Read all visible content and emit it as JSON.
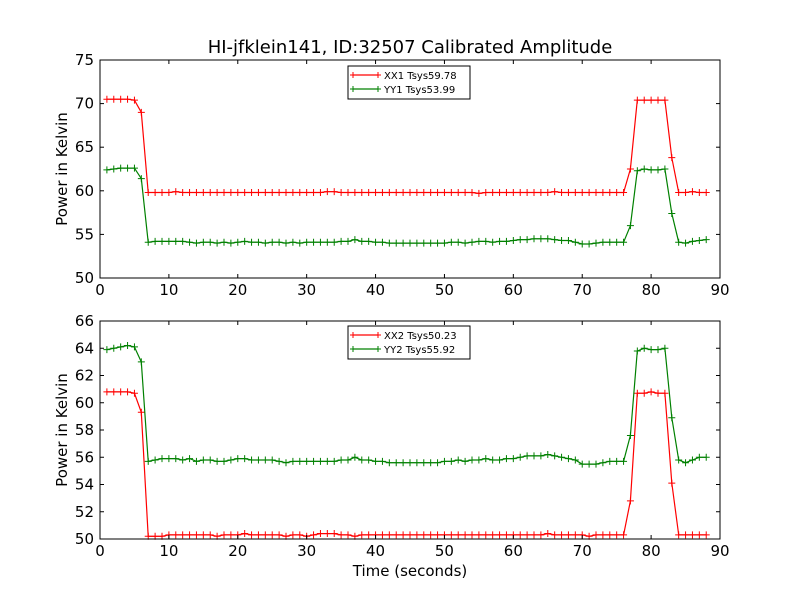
{
  "figure": {
    "title": "HI-jfklein141, ID:32507 Calibrated Amplitude",
    "xlabel": "Time (seconds)"
  },
  "chart_data": [
    {
      "type": "line",
      "title": "HI-jfklein141, ID:32507 Calibrated Amplitude",
      "xlabel": "",
      "ylabel": "Power in Kelvin",
      "xlim": [
        0,
        90
      ],
      "ylim": [
        50,
        75
      ],
      "xticks": [
        0,
        10,
        20,
        30,
        40,
        50,
        60,
        70,
        80,
        90
      ],
      "yticks": [
        50,
        55,
        60,
        65,
        70,
        75
      ],
      "grid": false,
      "legend_position": "top-center",
      "series": [
        {
          "name": "XX1 Tsys59.78",
          "color": "#ff0000",
          "x": [
            1,
            2,
            3,
            4,
            5,
            6,
            7,
            8,
            9,
            10,
            11,
            12,
            13,
            14,
            15,
            16,
            17,
            18,
            19,
            20,
            21,
            22,
            23,
            24,
            25,
            26,
            27,
            28,
            29,
            30,
            31,
            32,
            33,
            34,
            35,
            36,
            37,
            38,
            39,
            40,
            41,
            42,
            43,
            44,
            45,
            46,
            47,
            48,
            49,
            50,
            51,
            52,
            53,
            54,
            55,
            56,
            57,
            58,
            59,
            60,
            61,
            62,
            63,
            64,
            65,
            66,
            67,
            68,
            69,
            70,
            71,
            72,
            73,
            74,
            75,
            76,
            77,
            78,
            79,
            80,
            81,
            82,
            83,
            84,
            85,
            86,
            87,
            88
          ],
          "values": [
            70.5,
            70.5,
            70.5,
            70.5,
            70.4,
            69.0,
            59.8,
            59.8,
            59.8,
            59.8,
            59.9,
            59.8,
            59.8,
            59.8,
            59.8,
            59.8,
            59.8,
            59.8,
            59.8,
            59.8,
            59.8,
            59.8,
            59.8,
            59.8,
            59.8,
            59.8,
            59.8,
            59.8,
            59.8,
            59.8,
            59.8,
            59.8,
            59.9,
            59.9,
            59.8,
            59.8,
            59.8,
            59.8,
            59.8,
            59.8,
            59.8,
            59.8,
            59.8,
            59.8,
            59.8,
            59.8,
            59.8,
            59.8,
            59.8,
            59.8,
            59.8,
            59.8,
            59.8,
            59.8,
            59.7,
            59.8,
            59.8,
            59.8,
            59.8,
            59.8,
            59.8,
            59.8,
            59.8,
            59.8,
            59.8,
            59.9,
            59.8,
            59.8,
            59.8,
            59.8,
            59.8,
            59.8,
            59.8,
            59.8,
            59.8,
            59.8,
            62.5,
            70.4,
            70.4,
            70.4,
            70.4,
            70.4,
            63.8,
            59.8,
            59.8,
            59.9,
            59.8,
            59.8
          ]
        },
        {
          "name": "YY1 Tsys53.99",
          "color": "#008000",
          "x": [
            1,
            2,
            3,
            4,
            5,
            6,
            7,
            8,
            9,
            10,
            11,
            12,
            13,
            14,
            15,
            16,
            17,
            18,
            19,
            20,
            21,
            22,
            23,
            24,
            25,
            26,
            27,
            28,
            29,
            30,
            31,
            32,
            33,
            34,
            35,
            36,
            37,
            38,
            39,
            40,
            41,
            42,
            43,
            44,
            45,
            46,
            47,
            48,
            49,
            50,
            51,
            52,
            53,
            54,
            55,
            56,
            57,
            58,
            59,
            60,
            61,
            62,
            63,
            64,
            65,
            66,
            67,
            68,
            69,
            70,
            71,
            72,
            73,
            74,
            75,
            76,
            77,
            78,
            79,
            80,
            81,
            82,
            83,
            84,
            85,
            86,
            87,
            88
          ],
          "values": [
            62.4,
            62.5,
            62.6,
            62.6,
            62.6,
            61.4,
            54.1,
            54.2,
            54.2,
            54.2,
            54.2,
            54.2,
            54.1,
            54.0,
            54.1,
            54.1,
            54.0,
            54.1,
            54.0,
            54.1,
            54.2,
            54.1,
            54.1,
            54.0,
            54.1,
            54.1,
            54.0,
            54.1,
            54.0,
            54.1,
            54.1,
            54.1,
            54.1,
            54.1,
            54.2,
            54.2,
            54.4,
            54.2,
            54.2,
            54.1,
            54.1,
            54.0,
            54.0,
            54.0,
            54.0,
            54.0,
            54.0,
            54.0,
            54.0,
            54.0,
            54.1,
            54.1,
            54.0,
            54.1,
            54.2,
            54.2,
            54.1,
            54.2,
            54.2,
            54.3,
            54.4,
            54.4,
            54.5,
            54.5,
            54.5,
            54.4,
            54.3,
            54.3,
            54.1,
            53.9,
            53.9,
            54.0,
            54.1,
            54.1,
            54.1,
            54.1,
            56.0,
            62.3,
            62.5,
            62.4,
            62.4,
            62.5,
            57.4,
            54.1,
            54.0,
            54.2,
            54.3,
            54.4
          ]
        }
      ]
    },
    {
      "type": "line",
      "xlabel": "Time (seconds)",
      "ylabel": "Power in Kelvin",
      "xlim": [
        0,
        90
      ],
      "ylim": [
        50,
        66
      ],
      "xticks": [
        0,
        10,
        20,
        30,
        40,
        50,
        60,
        70,
        80,
        90
      ],
      "yticks": [
        50,
        52,
        54,
        56,
        58,
        60,
        62,
        64,
        66
      ],
      "grid": false,
      "legend_position": "top-center",
      "series": [
        {
          "name": "XX2 Tsys50.23",
          "color": "#ff0000",
          "x": [
            1,
            2,
            3,
            4,
            5,
            6,
            7,
            8,
            9,
            10,
            11,
            12,
            13,
            14,
            15,
            16,
            17,
            18,
            19,
            20,
            21,
            22,
            23,
            24,
            25,
            26,
            27,
            28,
            29,
            30,
            31,
            32,
            33,
            34,
            35,
            36,
            37,
            38,
            39,
            40,
            41,
            42,
            43,
            44,
            45,
            46,
            47,
            48,
            49,
            50,
            51,
            52,
            53,
            54,
            55,
            56,
            57,
            58,
            59,
            60,
            61,
            62,
            63,
            64,
            65,
            66,
            67,
            68,
            69,
            70,
            71,
            72,
            73,
            74,
            75,
            76,
            77,
            78,
            79,
            80,
            81,
            82,
            83,
            84,
            85,
            86,
            87,
            88
          ],
          "values": [
            60.8,
            60.8,
            60.8,
            60.8,
            60.7,
            59.3,
            50.2,
            50.2,
            50.2,
            50.3,
            50.3,
            50.3,
            50.3,
            50.3,
            50.3,
            50.3,
            50.2,
            50.3,
            50.3,
            50.3,
            50.4,
            50.3,
            50.3,
            50.3,
            50.3,
            50.3,
            50.2,
            50.3,
            50.3,
            50.2,
            50.3,
            50.4,
            50.4,
            50.4,
            50.3,
            50.3,
            50.2,
            50.3,
            50.3,
            50.3,
            50.3,
            50.3,
            50.3,
            50.3,
            50.3,
            50.3,
            50.3,
            50.3,
            50.3,
            50.3,
            50.3,
            50.3,
            50.3,
            50.3,
            50.3,
            50.3,
            50.3,
            50.3,
            50.3,
            50.3,
            50.3,
            50.3,
            50.3,
            50.3,
            50.4,
            50.3,
            50.3,
            50.3,
            50.3,
            50.3,
            50.2,
            50.3,
            50.3,
            50.3,
            50.3,
            50.3,
            52.8,
            60.7,
            60.7,
            60.8,
            60.7,
            60.7,
            54.1,
            50.3,
            50.3,
            50.3,
            50.3,
            50.3
          ]
        },
        {
          "name": "YY2 Tsys55.92",
          "color": "#008000",
          "x": [
            1,
            2,
            3,
            4,
            5,
            6,
            7,
            8,
            9,
            10,
            11,
            12,
            13,
            14,
            15,
            16,
            17,
            18,
            19,
            20,
            21,
            22,
            23,
            24,
            25,
            26,
            27,
            28,
            29,
            30,
            31,
            32,
            33,
            34,
            35,
            36,
            37,
            38,
            39,
            40,
            41,
            42,
            43,
            44,
            45,
            46,
            47,
            48,
            49,
            50,
            51,
            52,
            53,
            54,
            55,
            56,
            57,
            58,
            59,
            60,
            61,
            62,
            63,
            64,
            65,
            66,
            67,
            68,
            69,
            70,
            71,
            72,
            73,
            74,
            75,
            76,
            77,
            78,
            79,
            80,
            81,
            82,
            83,
            84,
            85,
            86,
            87,
            88
          ],
          "values": [
            63.9,
            64.0,
            64.1,
            64.2,
            64.1,
            63.0,
            55.7,
            55.8,
            55.9,
            55.9,
            55.9,
            55.8,
            55.9,
            55.7,
            55.8,
            55.8,
            55.7,
            55.7,
            55.8,
            55.9,
            55.9,
            55.8,
            55.8,
            55.8,
            55.8,
            55.7,
            55.6,
            55.7,
            55.7,
            55.7,
            55.7,
            55.7,
            55.7,
            55.7,
            55.8,
            55.8,
            56.0,
            55.8,
            55.8,
            55.7,
            55.7,
            55.6,
            55.6,
            55.6,
            55.6,
            55.6,
            55.6,
            55.6,
            55.6,
            55.7,
            55.7,
            55.8,
            55.7,
            55.8,
            55.8,
            55.9,
            55.8,
            55.8,
            55.9,
            55.9,
            56.0,
            56.1,
            56.1,
            56.1,
            56.2,
            56.1,
            56.0,
            55.9,
            55.8,
            55.5,
            55.5,
            55.5,
            55.6,
            55.7,
            55.7,
            55.7,
            57.6,
            63.8,
            64.0,
            63.9,
            63.9,
            64.0,
            58.9,
            55.8,
            55.6,
            55.8,
            56.0,
            56.0
          ]
        }
      ]
    }
  ]
}
